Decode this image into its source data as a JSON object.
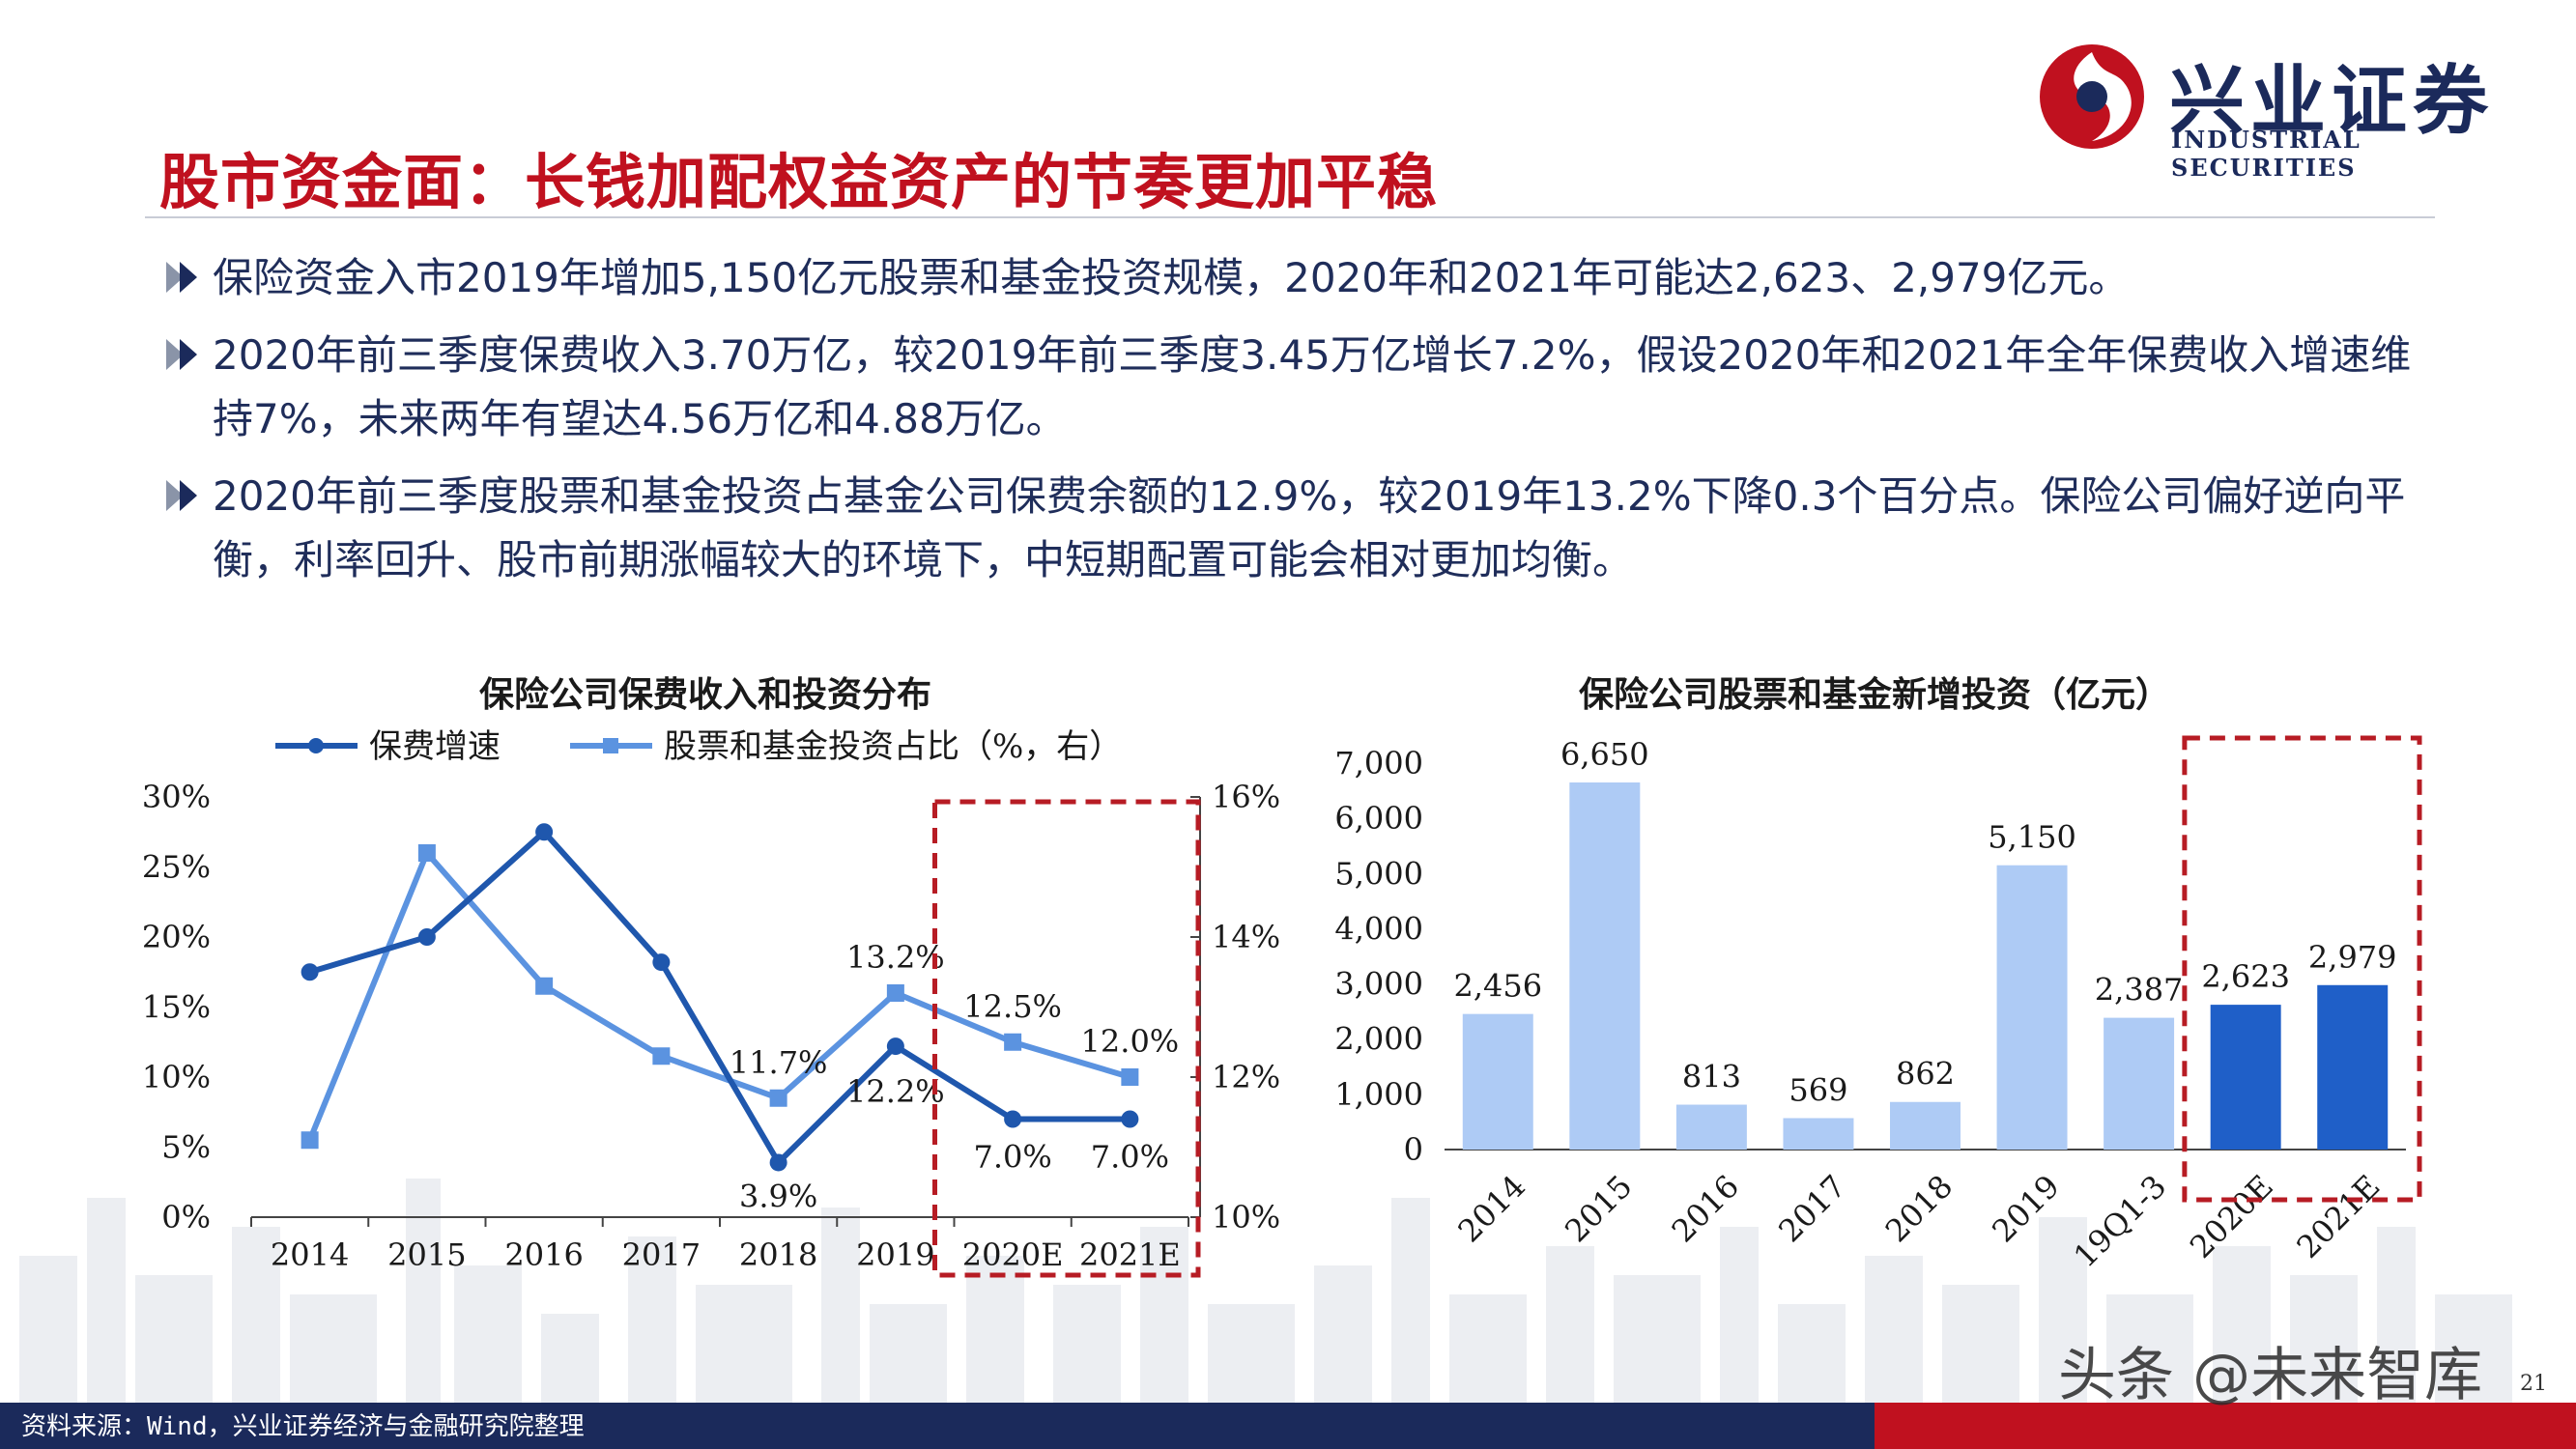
{
  "header": {
    "title": "股市资金面：长钱加配权益资产的节奏更加平稳",
    "logo_cn": "兴业证券",
    "logo_en": "INDUSTRIAL SECURITIES"
  },
  "bullets": [
    "保险资金入市2019年增加5,150亿元股票和基金投资规模，2020年和2021年可能达2,623、2,979亿元。",
    "2020年前三季度保费收入3.70万亿，较2019年前三季度3.45万亿增长7.2%，假设2020年和2021年全年保费收入增速维持7%，未来两年有望达4.56万亿和4.88万亿。",
    "2020年前三季度股票和基金投资占基金公司保费余额的12.9%，较2019年13.2%下降0.3个百分点。保险公司偏好逆向平衡，利率回升、股市前期涨幅较大的环境下，中短期配置可能会相对更加均衡。"
  ],
  "colors": {
    "title_red": "#c0111f",
    "navy": "#1b2a5b",
    "series1": "#1f57ad",
    "series2": "#5b93e0",
    "bar_light": "#aecbf5",
    "bar_dark": "#1f5fc8",
    "dashed_box": "#b71c24"
  },
  "chart_data": [
    {
      "type": "line",
      "title": "保险公司保费收入和投资分布",
      "categories": [
        "2014",
        "2015",
        "2016",
        "2017",
        "2018",
        "2019",
        "2020E",
        "2021E"
      ],
      "series": [
        {
          "name": "保费增速",
          "axis": "left",
          "values": [
            17.5,
            20.0,
            27.5,
            18.2,
            3.9,
            12.2,
            7.0,
            7.0
          ]
        },
        {
          "name": "股票和基金投资占比（%，右）",
          "axis": "right",
          "values": [
            11.1,
            15.2,
            13.3,
            12.3,
            11.7,
            13.2,
            12.5,
            12.0
          ]
        }
      ],
      "y_left": {
        "min": 0,
        "max": 30,
        "ticks": [
          "0%",
          "5%",
          "10%",
          "15%",
          "20%",
          "25%",
          "30%"
        ]
      },
      "y_right": {
        "min": 10,
        "max": 16,
        "ticks": [
          "10%",
          "12%",
          "14%",
          "16%"
        ]
      },
      "data_labels": {
        "s1": {
          "2018": "3.9%",
          "2019": "12.2%",
          "2020E": "7.0%",
          "2021E": "7.0%"
        },
        "s2": {
          "2018": "11.7%",
          "2019": "13.2%",
          "2020E": "12.5%",
          "2021E": "12.0%"
        }
      },
      "legend_position": "top",
      "highlight": [
        "2020E",
        "2021E"
      ]
    },
    {
      "type": "bar",
      "title": "保险公司股票和基金新增投资（亿元）",
      "categories": [
        "2014",
        "2015",
        "2016",
        "2017",
        "2018",
        "2019",
        "19Q1-3",
        "2020E",
        "2021E"
      ],
      "values": [
        2456,
        6650,
        813,
        569,
        862,
        5150,
        2387,
        2623,
        2979
      ],
      "labels": [
        "2,456",
        "6,650",
        "813",
        "569",
        "862",
        "5,150",
        "2,387",
        "2,623",
        "2,979"
      ],
      "ylim": [
        0,
        7000
      ],
      "y_ticks": [
        "0",
        "1,000",
        "2,000",
        "3,000",
        "4,000",
        "5,000",
        "6,000",
        "7,000"
      ],
      "highlight": [
        "2020E",
        "2021E"
      ]
    }
  ],
  "footer": {
    "source": "资料来源：Wind，兴业证券经济与金融研究院整理",
    "watermark": "头条 @未来智库",
    "page": "21"
  }
}
